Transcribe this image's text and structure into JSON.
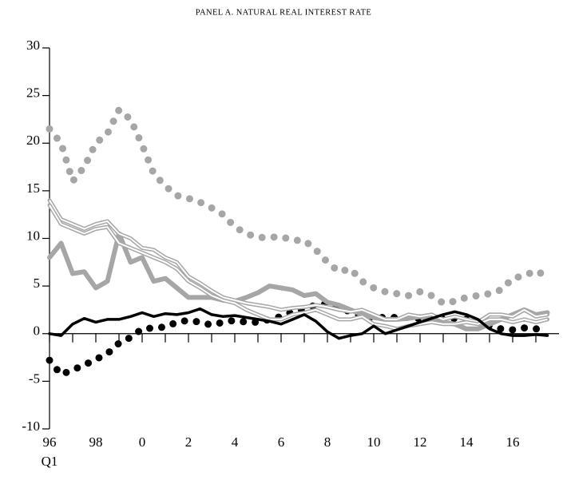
{
  "chart_data": {
    "type": "line",
    "title": "PANEL A. NATURAL REAL INTEREST RATE",
    "xlabel": "Q1",
    "x": [
      1996,
      1996.5,
      1997,
      1997.5,
      1998,
      1998.5,
      1999,
      1999.5,
      2000,
      2000.5,
      2001,
      2001.5,
      2002,
      2002.5,
      2003,
      2003.5,
      2004,
      2004.5,
      2005,
      2005.5,
      2006,
      2006.5,
      2007,
      2007.5,
      2008,
      2008.5,
      2009,
      2009.5,
      2010,
      2010.5,
      2011,
      2011.5,
      2012,
      2012.5,
      2013,
      2013.5,
      2014,
      2014.5,
      2015,
      2015.5,
      2016,
      2016.5,
      2017,
      2017.5
    ],
    "xlim": [
      1996,
      2018
    ],
    "xticks": [
      {
        "value": 1996,
        "label": "96"
      },
      {
        "value": 1998,
        "label": "98"
      },
      {
        "value": 2000,
        "label": "0"
      },
      {
        "value": 2002,
        "label": "2"
      },
      {
        "value": 2004,
        "label": "4"
      },
      {
        "value": 2006,
        "label": "6"
      },
      {
        "value": 2008,
        "label": "8"
      },
      {
        "value": 2010,
        "label": "10"
      },
      {
        "value": 2012,
        "label": "12"
      },
      {
        "value": 2014,
        "label": "14"
      },
      {
        "value": 2016,
        "label": "16"
      }
    ],
    "xminorticks": [
      1997,
      1999,
      2001,
      2003,
      2005,
      2007,
      2009,
      2011,
      2013,
      2015,
      2017
    ],
    "ylim": [
      -10,
      30
    ],
    "yticks": [
      -10,
      -5,
      0,
      5,
      10,
      15,
      20,
      25,
      30
    ],
    "series": [
      {
        "color": "#a6a6a6",
        "style": "dotted",
        "width": 9,
        "values": [
          21.5,
          20,
          16,
          17.5,
          20,
          21,
          23.5,
          22.5,
          19.8,
          16.8,
          15.5,
          14.5,
          14.2,
          13.8,
          13.2,
          12.5,
          11.2,
          10.5,
          10.1,
          10.1,
          10.2,
          9.8,
          9.8,
          8.8,
          7.5,
          6.5,
          6.8,
          5.5,
          4.8,
          4.4,
          4.2,
          4.0,
          4.4,
          4.0,
          3.2,
          3.4,
          3.8,
          4.0,
          4.2,
          4.6,
          5.8,
          6.1,
          6.6,
          6.0
        ]
      },
      {
        "color": "#000000",
        "style": "dotted",
        "width": 9,
        "values": [
          -2.8,
          -4.3,
          -3.8,
          -3.3,
          -2.7,
          -2.1,
          -1.0,
          -0.4,
          0.5,
          0.6,
          0.7,
          1.2,
          1.4,
          1.2,
          0.9,
          1.2,
          1.4,
          1.2,
          1.2,
          1.5,
          1.8,
          2.3,
          2.6,
          3.0,
          3.1,
          2.7,
          2.3,
          1.8,
          1.7,
          1.7,
          1.7,
          1.7,
          1.6,
          1.6,
          1.6,
          1.6,
          1.5,
          1.2,
          0.8,
          0.5,
          0.4,
          0.6,
          0.5,
          0.5
        ]
      },
      {
        "color": "#a6a6a6",
        "style": "solid",
        "width": 6,
        "values": [
          8,
          9.5,
          6.3,
          6.5,
          4.8,
          5.5,
          10.5,
          7.5,
          8,
          5.5,
          5.8,
          4.8,
          3.8,
          3.8,
          3.8,
          3.5,
          3.4,
          3.8,
          4.3,
          5.0,
          4.8,
          4.6,
          4.0,
          4.2,
          3.3,
          3.0,
          2.5,
          2.0,
          1.7,
          1.5,
          1.5,
          1.6,
          1.8,
          1.5,
          1.2,
          1.0,
          0.5,
          0.5,
          1.0,
          1.5,
          2.0,
          2.5,
          2.0,
          2.2
        ]
      },
      {
        "color": "#a6a6a6",
        "style": "double",
        "width": 5,
        "values": [
          14,
          12,
          11.5,
          11,
          11.5,
          11.8,
          10.5,
          10,
          9,
          8.8,
          8,
          7.5,
          6,
          5.3,
          4.5,
          3.8,
          3.5,
          3.2,
          3.0,
          2.8,
          2.5,
          2.7,
          2.8,
          3.0,
          2.8,
          2.5,
          2.3,
          2.5,
          2.0,
          1.5,
          1.5,
          2.0,
          1.8,
          2.0,
          1.5,
          1.8,
          1.5,
          1.2,
          2.0,
          2.0,
          1.8,
          2.5,
          1.8,
          2.0
        ]
      },
      {
        "color": "#a6a6a6",
        "style": "double",
        "width": 5,
        "values": [
          13.5,
          11.5,
          11,
          10.5,
          11,
          11.2,
          9.5,
          9,
          8.5,
          8,
          7.5,
          6.8,
          5.5,
          4.8,
          4.0,
          3.5,
          3.2,
          2.5,
          2.0,
          1.5,
          1.5,
          2.0,
          2.2,
          2.5,
          2.0,
          1.5,
          1.5,
          1.8,
          1.0,
          0.8,
          0.5,
          0.8,
          1.0,
          1.2,
          1.0,
          1.0,
          1.2,
          1.0,
          1.5,
          1.5,
          1.2,
          1.5,
          1.2,
          1.5
        ]
      },
      {
        "color": "#000000",
        "style": "solid",
        "width": 3.5,
        "values": [
          0,
          -0.2,
          1.0,
          1.6,
          1.2,
          1.5,
          1.5,
          1.8,
          2.2,
          1.8,
          2.1,
          2.0,
          2.2,
          2.6,
          2.0,
          1.8,
          1.9,
          1.7,
          1.5,
          1.3,
          1.0,
          1.5,
          2.0,
          1.3,
          0.2,
          -0.5,
          -0.2,
          0.0,
          0.8,
          0.0,
          0.4,
          0.8,
          1.2,
          1.6,
          2.0,
          2.3,
          2.0,
          1.5,
          0.5,
          0.0,
          -0.2,
          -0.2,
          -0.1,
          -0.2
        ]
      }
    ]
  }
}
